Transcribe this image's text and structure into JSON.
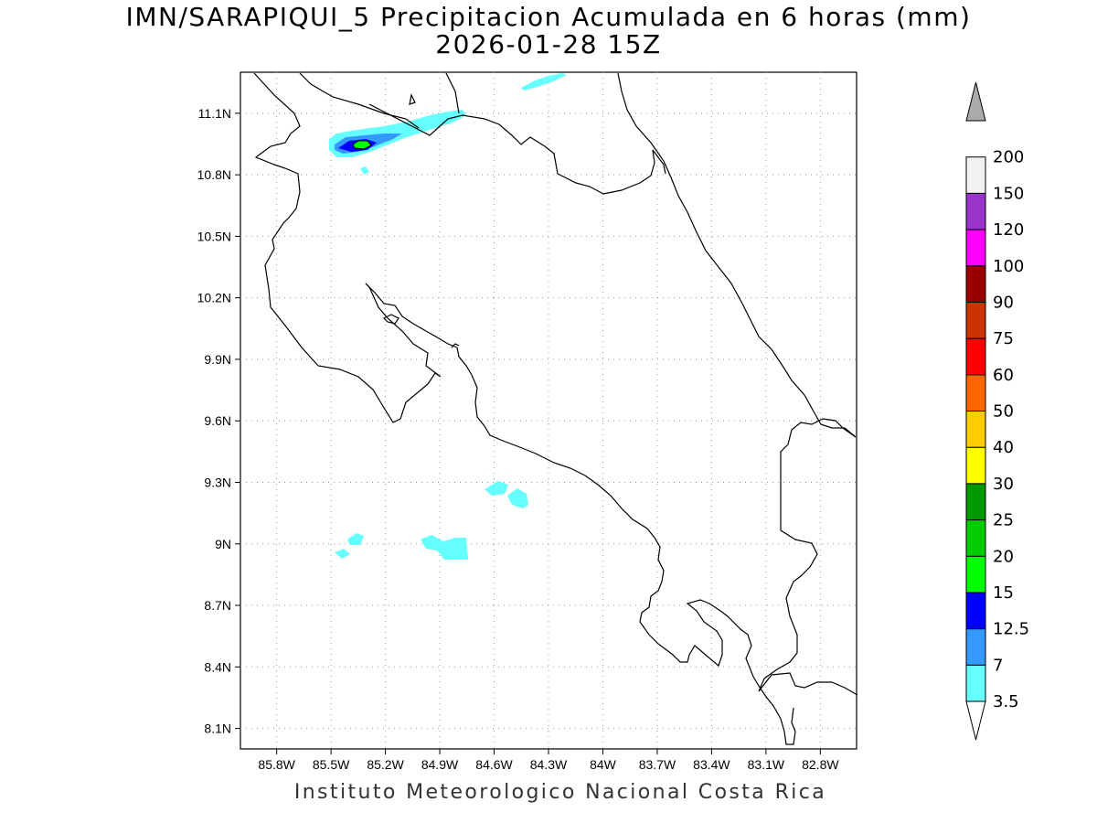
{
  "title": {
    "line1": "IMN/SARAPIQUI_5 Precipitacion Acumulada en 6 horas (mm)",
    "line2": "2026-01-28 15Z"
  },
  "footer": "Instituto Meteorologico Nacional Costa Rica",
  "map": {
    "lon_range": [
      -86.0,
      -82.6
    ],
    "lat_range": [
      8.0,
      11.3
    ],
    "lon_ticks": [
      "85.8W",
      "85.5W",
      "85.2W",
      "84.9W",
      "84.6W",
      "84.3W",
      "84W",
      "83.7W",
      "83.4W",
      "83.1W",
      "82.8W"
    ],
    "lat_ticks": [
      "11.1N",
      "10.8N",
      "10.5N",
      "10.2N",
      "9.9N",
      "9.6N",
      "9.3N",
      "9N",
      "8.7N",
      "8.4N",
      "8.1N"
    ],
    "grid": "dotted"
  },
  "colorbar": {
    "labels": [
      "3.5",
      "7",
      "12.5",
      "15",
      "20",
      "25",
      "30",
      "40",
      "50",
      "60",
      "75",
      "90",
      "100",
      "120",
      "150",
      "200"
    ],
    "colors": [
      "#66ffff",
      "#3399ff",
      "#0000ff",
      "#00ff00",
      "#00cc00",
      "#009900",
      "#ffff00",
      "#ffcc00",
      "#ff6600",
      "#ff0000",
      "#cc3300",
      "#990000",
      "#ff00ff",
      "#9933cc",
      "#f2f2f2",
      "#aaaaaa"
    ]
  },
  "colors": {
    "light_rain": "#66ffff",
    "moderate_rain": "#3399ff",
    "heavy_rain": "#0000ff",
    "intense_rain": "#00ff00",
    "coastline": "#000000",
    "grid": "#999999"
  }
}
